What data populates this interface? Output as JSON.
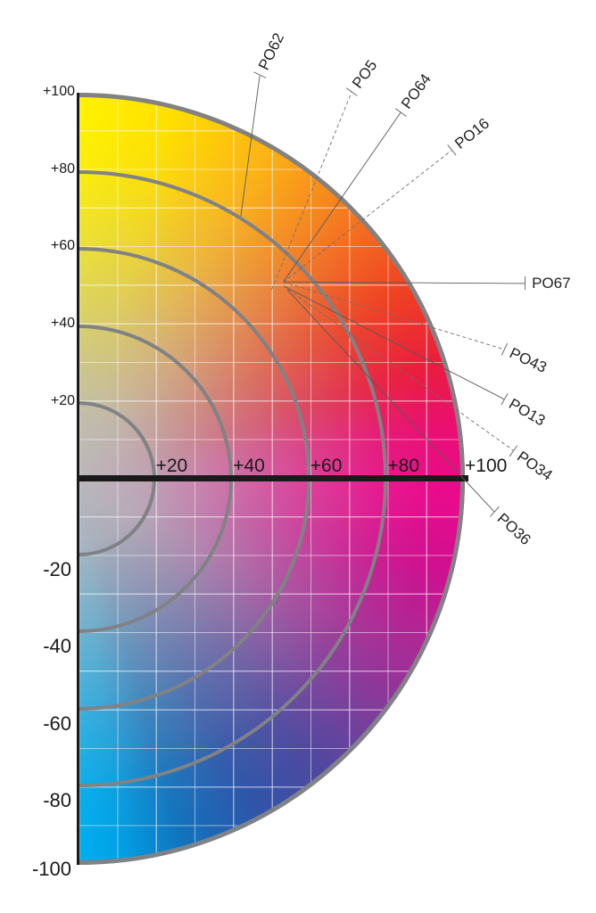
{
  "axis": {
    "vertical_tick_labels": [
      "+100",
      "+80",
      "+60",
      "+40",
      "+20",
      "-20",
      "-40",
      "-60",
      "-80",
      "-100"
    ],
    "horizontal_tick_labels": [
      "+20",
      "+40",
      "+60",
      "+80",
      "+100"
    ]
  },
  "colors": {
    "ring_stroke": "#808285",
    "axis_line": "#1a1a1a",
    "grid_line": "rgba(255,255,255,0.5)",
    "center_gray": "#bbb7bc",
    "wheel_top_yellow": "#fff200",
    "wheel_orange": "#f47b20",
    "wheel_red": "#ef4123",
    "wheel_right_magenta": "#ea0b8c",
    "wheel_violet": "#7a3f9b",
    "wheel_blue": "#2f55a9",
    "wheel_bottom_cyan": "#00aeef",
    "leader_line_solid": "#58595b",
    "leader_line_dashed": "#6d6e71",
    "label_text": "#231f20"
  },
  "chart_data": {
    "type": "scatter",
    "title": "",
    "description": "Right half of an a*/b* colour plane (colour wheel) with chroma rings; orange pigment hue points connected by leader lines to labels",
    "x_axis": {
      "label": "",
      "tick_labels": [
        "+20",
        "+40",
        "+60",
        "+80",
        "+100"
      ],
      "range": [
        0,
        100
      ]
    },
    "y_axis": {
      "label": "",
      "tick_labels": [
        "+100",
        "+80",
        "+60",
        "+40",
        "+20",
        "-20",
        "-40",
        "-60",
        "-80",
        "-100"
      ],
      "range": [
        -100,
        100
      ]
    },
    "grid": {
      "visible": true,
      "spacing": 10
    },
    "chroma_rings": [
      20,
      40,
      60,
      80,
      100
    ],
    "legend": "solid and dashed leader lines",
    "points": [
      {
        "label": "PO62",
        "a": 42,
        "b": 68,
        "line": "solid",
        "label_a": 46.9,
        "label_b": 104.4,
        "label_rotation": -64
      },
      {
        "label": "PO5",
        "a": 50,
        "b": 49,
        "line": "dashed",
        "label_a": 70.7,
        "label_b": 100.2,
        "label_rotation": -54
      },
      {
        "label": "PO64",
        "a": 53,
        "b": 51,
        "line": "solid",
        "label_a": 83.4,
        "label_b": 94.9,
        "label_rotation": -54
      },
      {
        "label": "PO16",
        "a": 53,
        "b": 51,
        "line": "dashed",
        "label_a": 96.5,
        "label_b": 85.0,
        "label_rotation": -39
      },
      {
        "label": "PO67",
        "a": 53,
        "b": 51,
        "line": "solid",
        "label_a": 115.5,
        "label_b": 50.6,
        "label_rotation": 0
      },
      {
        "label": "PO43",
        "a": 53,
        "b": 51,
        "line": "dashed",
        "label_a": 110.2,
        "label_b": 33.5,
        "label_rotation": 25
      },
      {
        "label": "PO13",
        "a": 53,
        "b": 50,
        "line": "solid",
        "label_a": 110.2,
        "label_b": 20.6,
        "label_rotation": 30
      },
      {
        "label": "PO34",
        "a": 53,
        "b": 50,
        "line": "dashed",
        "label_a": 112.5,
        "label_b": 7.4,
        "label_rotation": 35
      },
      {
        "label": "PO36",
        "a": 54,
        "b": 49,
        "line": "solid",
        "label_a": 107.6,
        "label_b": -8.5,
        "label_rotation": 42
      }
    ]
  }
}
